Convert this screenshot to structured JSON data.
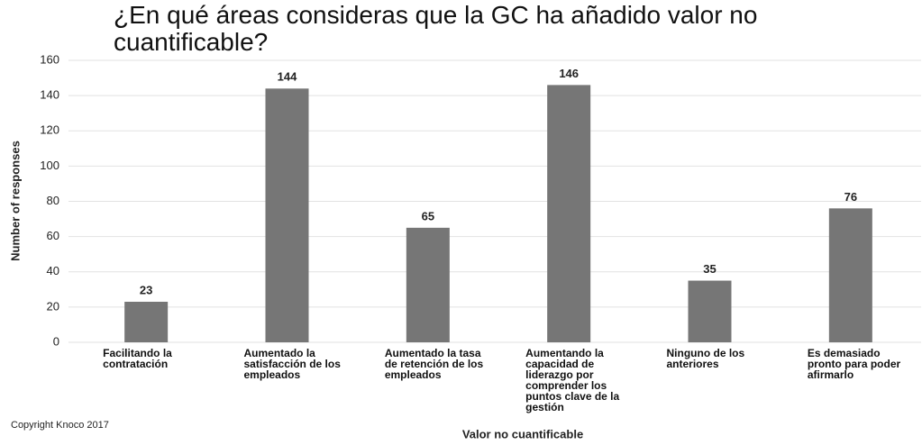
{
  "chart_data": {
    "type": "bar",
    "title": "¿En qué áreas consideras que la GC ha añadido valor no cuantificable?",
    "x_label": "Valor no cuantificable",
    "y_label": "Number of responses",
    "footnote": "Copyright Knoco 2017",
    "categories": [
      "Facilitando la contratación",
      "Aumentado la satisfacción de los empleados",
      "Aumentado la tasa de retención de los empleados",
      "Aumentando la capacidad de liderazgo por comprender los puntos clave de la gestión",
      "Ninguno de los anteriores",
      "Es demasiado pronto para poder afirmarlo"
    ],
    "values": [
      23,
      144,
      65,
      146,
      35,
      76
    ],
    "color": "#767676",
    "ylim": [
      0,
      160
    ],
    "yticks": [
      0,
      20,
      40,
      60,
      80,
      100,
      120,
      140,
      160
    ],
    "grid": true
  }
}
